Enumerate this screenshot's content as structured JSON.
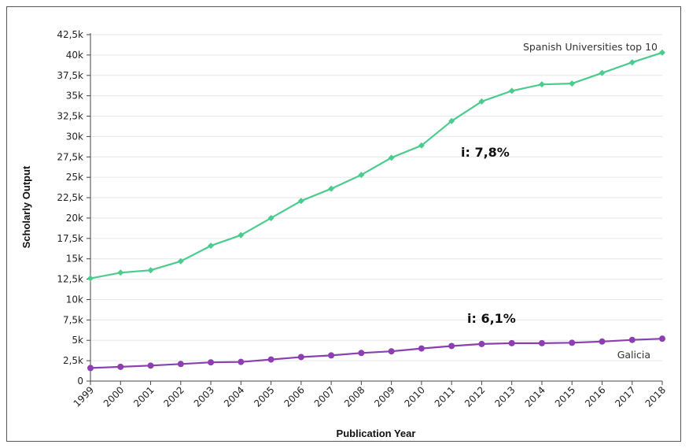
{
  "chart_data": {
    "type": "line",
    "xlabel": "Publication Year",
    "ylabel": "Scholarly Output",
    "x": [
      "1999",
      "2000",
      "2001",
      "2002",
      "2003",
      "2004",
      "2005",
      "2006",
      "2007",
      "2008",
      "2009",
      "2010",
      "2011",
      "2012",
      "2013",
      "2014",
      "2015",
      "2016",
      "2017",
      "2018"
    ],
    "ylim": [
      0,
      42500
    ],
    "y_ticks": [
      "0",
      "2,5k",
      "5k",
      "7,5k",
      "10k",
      "12,5k",
      "15k",
      "17,5k",
      "20k",
      "22,5k",
      "25k",
      "27,5k",
      "30k",
      "32,5k",
      "35k",
      "37,5k",
      "40k",
      "42,5k"
    ],
    "grid": true,
    "series": [
      {
        "name": "Spanish Universities top 10",
        "color": "#4ccb8e",
        "marker": "diamond",
        "values": [
          12600,
          13300,
          13600,
          14700,
          16600,
          17900,
          20000,
          22100,
          23600,
          25300,
          27400,
          28900,
          31900,
          34300,
          35600,
          36400,
          36500,
          37800,
          39100,
          40300
        ]
      },
      {
        "name": "Galicia",
        "color": "#8b3fb0",
        "marker": "circle",
        "values": [
          1600,
          1750,
          1900,
          2100,
          2300,
          2350,
          2650,
          2950,
          3150,
          3450,
          3650,
          4000,
          4300,
          4550,
          4650,
          4650,
          4700,
          4850,
          5050,
          5200
        ]
      }
    ],
    "annotations": [
      {
        "text": "i: 7,8%",
        "series": 0
      },
      {
        "text": "i: 6,1%",
        "series": 1
      }
    ]
  }
}
